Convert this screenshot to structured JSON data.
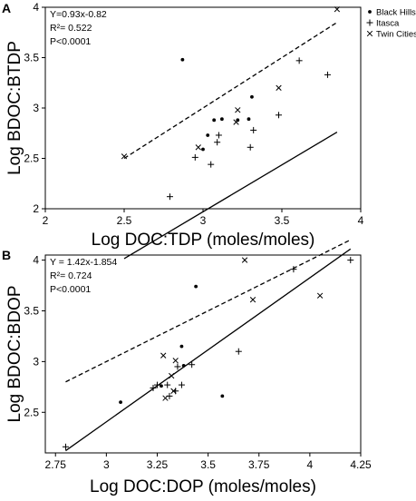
{
  "legend": [
    {
      "name": "Black Hills",
      "marker": "dot"
    },
    {
      "name": "Itasca",
      "marker": "plus"
    },
    {
      "name": "Twin Cities",
      "marker": "cross"
    }
  ],
  "colors": {
    "ink": "#000000",
    "background": "#ffffff"
  },
  "chart_data": [
    {
      "type": "scatter",
      "panel_label": "A",
      "title": "",
      "xlabel": "Log DOC:TDP (moles/moles)",
      "ylabel": "Log BDOC:BTDP",
      "xlim": [
        2,
        4
      ],
      "ylim": [
        2,
        4
      ],
      "xticks": [
        2,
        2.5,
        3,
        3.5,
        4
      ],
      "xtick_labels": [
        "2",
        "2.5",
        "3",
        "3.5",
        "4"
      ],
      "yticks": [
        2,
        2.5,
        3,
        3.5,
        4
      ],
      "ytick_labels": [
        "2",
        "2.5",
        "3",
        "3.5",
        "4"
      ],
      "annotations": [
        "Y=0.93x-0.82",
        "R²= 0.522",
        "P<0.0001"
      ],
      "fit_line": {
        "style": "solid",
        "slope": 0.93,
        "intercept": -0.82,
        "x_range": [
          2.5,
          3.85
        ]
      },
      "one_to_one_line": {
        "style": "dashed",
        "x_range": [
          2.5,
          3.85
        ]
      },
      "series": [
        {
          "name": "Black Hills",
          "marker": "dot",
          "points": [
            [
              2.87,
              3.48
            ],
            [
              3.07,
              2.88
            ],
            [
              3.12,
              2.89
            ],
            [
              3.29,
              2.89
            ],
            [
              3.31,
              3.11
            ],
            [
              3.03,
              2.73
            ],
            [
              3.0,
              2.59
            ],
            [
              3.22,
              2.88
            ]
          ]
        },
        {
          "name": "Itasca",
          "marker": "plus",
          "points": [
            [
              2.79,
              2.12
            ],
            [
              2.95,
              2.51
            ],
            [
              3.05,
              2.44
            ],
            [
              3.09,
              2.66
            ],
            [
              3.3,
              2.61
            ],
            [
              3.32,
              2.78
            ],
            [
              3.48,
              2.93
            ],
            [
              3.61,
              3.47
            ],
            [
              3.79,
              3.33
            ],
            [
              3.1,
              2.73
            ]
          ]
        },
        {
          "name": "Twin Cities",
          "marker": "cross",
          "points": [
            [
              2.5,
              2.52
            ],
            [
              2.97,
              2.61
            ],
            [
              3.22,
              2.98
            ],
            [
              3.48,
              3.2
            ],
            [
              3.85,
              3.98
            ],
            [
              3.21,
              2.86
            ]
          ]
        }
      ]
    },
    {
      "type": "scatter",
      "panel_label": "B",
      "title": "",
      "xlabel": "Log DOC:DOP (moles/moles)",
      "ylabel": "Log BDOC:BDOP",
      "xlim": [
        2.7,
        4.25
      ],
      "ylim": [
        2.1,
        4.05
      ],
      "xticks": [
        2.75,
        3,
        3.25,
        3.5,
        3.75,
        4,
        4.25
      ],
      "xtick_labels": [
        "2.75",
        "3",
        "3.25",
        "3.5",
        "3.75",
        "4",
        "4.25"
      ],
      "yticks": [
        2.5,
        3,
        3.5,
        4
      ],
      "ytick_labels": [
        "2.5",
        "3",
        "3.5",
        "4"
      ],
      "annotations": [
        "Y = 1.42x-1.854",
        "R²= 0.724",
        "P<0.0001"
      ],
      "fit_line": {
        "style": "solid",
        "slope": 1.42,
        "intercept": -1.854,
        "x_range": [
          2.8,
          4.2
        ]
      },
      "one_to_one_line": {
        "style": "dashed",
        "x_range": [
          2.8,
          4.2
        ]
      },
      "series": [
        {
          "name": "Black Hills",
          "marker": "dot",
          "points": [
            [
              3.07,
              2.6
            ],
            [
              3.37,
              3.15
            ],
            [
              3.44,
              3.74
            ],
            [
              3.57,
              2.66
            ],
            [
              3.38,
              2.96
            ],
            [
              3.27,
              2.76
            ]
          ]
        },
        {
          "name": "Itasca",
          "marker": "plus",
          "points": [
            [
              2.8,
              2.16
            ],
            [
              3.23,
              2.74
            ],
            [
              3.25,
              2.77
            ],
            [
              3.3,
              2.77
            ],
            [
              3.31,
              2.66
            ],
            [
              3.37,
              2.77
            ],
            [
              3.35,
              2.95
            ],
            [
              3.42,
              2.97
            ],
            [
              3.65,
              3.1
            ],
            [
              3.92,
              3.91
            ],
            [
              4.2,
              4.0
            ],
            [
              3.34,
              2.71
            ]
          ]
        },
        {
          "name": "Twin Cities",
          "marker": "cross",
          "points": [
            [
              3.29,
              2.64
            ],
            [
              3.28,
              3.06
            ],
            [
              3.32,
              2.86
            ],
            [
              3.34,
              3.01
            ],
            [
              3.33,
              2.71
            ],
            [
              3.68,
              4.0
            ],
            [
              3.72,
              3.61
            ],
            [
              4.05,
              3.65
            ]
          ]
        }
      ]
    }
  ]
}
